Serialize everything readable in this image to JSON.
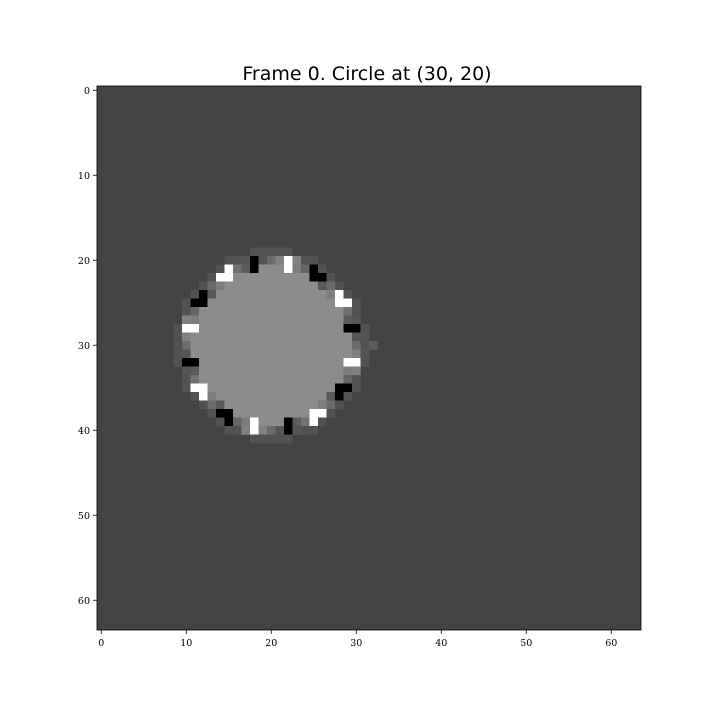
{
  "chart_data": {
    "type": "heatmap",
    "title": "Frame 0. Circle at (30, 20)",
    "xlabel": "",
    "ylabel": "",
    "xlim": [
      -0.5,
      63.5
    ],
    "ylim": [
      63.5,
      -0.5
    ],
    "x_ticks": [
      0,
      10,
      20,
      30,
      40,
      50,
      60
    ],
    "y_ticks": [
      0,
      10,
      20,
      30,
      40,
      50,
      60
    ],
    "grid": false,
    "colormap": "gray",
    "grid_size": [
      64,
      64
    ],
    "background_level": 0.27,
    "circle": {
      "center_row": 30,
      "center_col": 20,
      "radius": 10
    },
    "interior_level": 0.55,
    "rim_level": 0.42,
    "colors": {
      "background": "#434343",
      "interior": "#8a8a8a",
      "edge_light": "#ffffff",
      "edge_dark": "#000000"
    }
  }
}
